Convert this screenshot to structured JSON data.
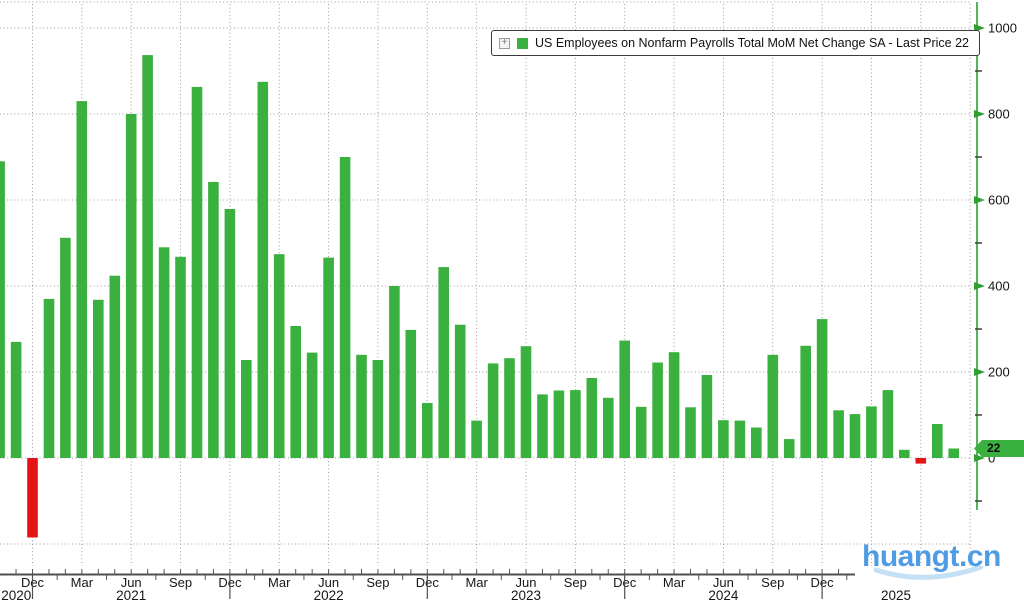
{
  "legend": {
    "label": "US Employees on Nonfarm Payrolls Total MoM Net Change SA - Last Price 22"
  },
  "last_price_badge": {
    "value": "22"
  },
  "watermark": {
    "text": "huangt.cn"
  },
  "chart_data": {
    "type": "bar",
    "title": "US Employees on Nonfarm Payrolls Total MoM Net Change SA",
    "subtitle": "Last Price 22",
    "last_price": 22,
    "months": [
      "2020-10",
      "2020-11",
      "2020-12",
      "2021-01",
      "2021-02",
      "2021-03",
      "2021-04",
      "2021-05",
      "2021-06",
      "2021-07",
      "2021-08",
      "2021-09",
      "2021-10",
      "2021-11",
      "2021-12",
      "2022-01",
      "2022-02",
      "2022-03",
      "2022-04",
      "2022-05",
      "2022-06",
      "2022-07",
      "2022-08",
      "2022-09",
      "2022-10",
      "2022-11",
      "2022-12",
      "2023-01",
      "2023-02",
      "2023-03",
      "2023-04",
      "2023-05",
      "2023-06",
      "2023-07",
      "2023-08",
      "2023-09",
      "2023-10",
      "2023-11",
      "2023-12",
      "2024-01",
      "2024-02",
      "2024-03",
      "2024-04",
      "2024-05",
      "2024-06",
      "2024-07",
      "2024-08",
      "2024-09",
      "2024-10",
      "2024-11",
      "2024-12",
      "2025-01",
      "2025-02",
      "2025-03",
      "2025-04",
      "2025-05",
      "2025-06",
      "2025-07",
      "2025-08"
    ],
    "values": [
      690,
      270,
      -185,
      370,
      512,
      830,
      368,
      424,
      800,
      937,
      490,
      468,
      863,
      642,
      579,
      228,
      875,
      474,
      307,
      245,
      466,
      700,
      240,
      228,
      400,
      298,
      128,
      444,
      310,
      87,
      220,
      232,
      260,
      148,
      157,
      158,
      186,
      140,
      273,
      119,
      222,
      246,
      118,
      193,
      88,
      87,
      71,
      240,
      44,
      261,
      323,
      111,
      102,
      120,
      158,
      19,
      -13,
      79,
      22
    ],
    "yticks": [
      0,
      200,
      400,
      600,
      800,
      1000
    ],
    "ylim": [
      -270,
      1065
    ],
    "grid": "dotted",
    "legend_position": "top-right",
    "month_tick_names": {
      "3": "Mar",
      "6": "Jun",
      "9": "Sep",
      "12": "Dec"
    },
    "year_labels": [
      "2020",
      "2021",
      "2022",
      "2023",
      "2024",
      "2025"
    ],
    "colors": {
      "bar_positive": "#3ab03e",
      "bar_negative": "#e31413",
      "axis_green": "#2f9e33",
      "grid_gray": "#9b9b9b",
      "axis_dark": "#4f4f4f",
      "watermark_blue": "#4f9ce5",
      "watermark_swoosh": "#c3e0f5"
    }
  }
}
